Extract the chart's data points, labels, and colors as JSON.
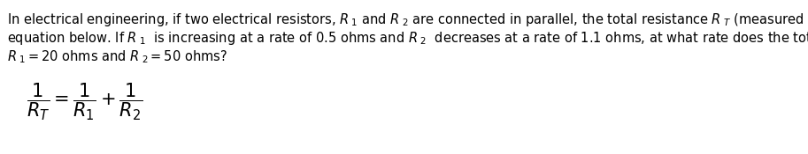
{
  "background_color": "#ffffff",
  "text_color": "#000000",
  "line1": "In electrical engineering, if two electrical resistors, $R_{\\ 1}$ and $R_{\\ 2}$ are connected in parallel, the total resistance $R_{\\ T}$ (measured in ohms) is given by the",
  "line2": "equation below. If $R_{\\ 1}$  is increasing at a rate of 0.5 ohms and $R_{\\ 2}$  decreases at a rate of 1.1 ohms, at what rate does the total resistance change when",
  "line3": "$R_{\\ 1}$$=20$ ohms and $R_{\\ 2}$$=50$ ohms?",
  "formula": "$\\dfrac{1}{R_T} = \\dfrac{1}{R_1} + \\dfrac{1}{R_2}$",
  "fig_width": 9.13,
  "fig_height": 1.75,
  "dpi": 100,
  "fontsize_text": 10.5,
  "fontsize_formula": 15
}
